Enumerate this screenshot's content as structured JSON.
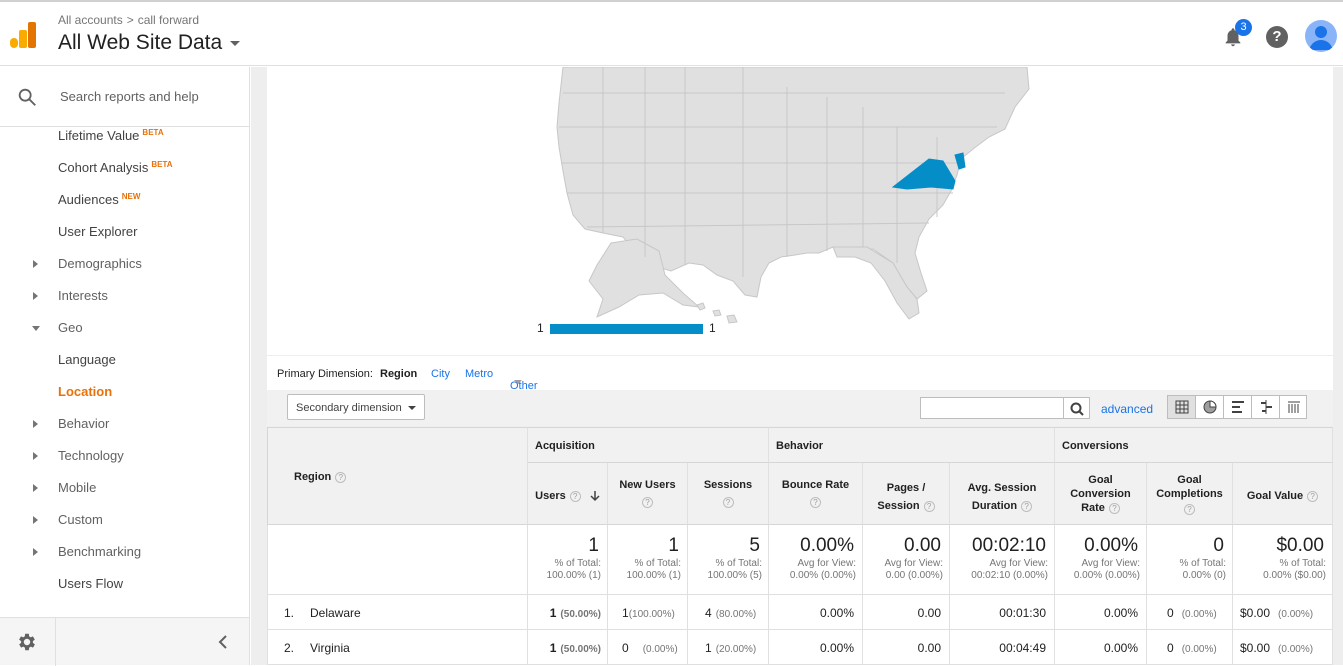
{
  "header": {
    "breadcrumb": [
      "All accounts",
      "call forward"
    ],
    "breadcrumb_sep": ">",
    "property": "All Web Site Data",
    "notifications": "3",
    "help_glyph": "?"
  },
  "sidebar": {
    "search_label": "Search reports and help",
    "items": [
      {
        "label": "Lifetime Value",
        "badge": "BETA",
        "type": "sub"
      },
      {
        "label": "Cohort Analysis",
        "badge": "BETA",
        "type": "sub"
      },
      {
        "label": "Audiences",
        "badge": "NEW",
        "type": "sub"
      },
      {
        "label": "User Explorer",
        "type": "sub"
      },
      {
        "label": "Demographics",
        "type": "collapsed"
      },
      {
        "label": "Interests",
        "type": "collapsed"
      },
      {
        "label": "Geo",
        "type": "expanded"
      },
      {
        "label": "Language",
        "type": "sub"
      },
      {
        "label": "Location",
        "type": "active"
      },
      {
        "label": "Behavior",
        "type": "collapsed"
      },
      {
        "label": "Technology",
        "type": "collapsed"
      },
      {
        "label": "Mobile",
        "type": "collapsed"
      },
      {
        "label": "Custom",
        "type": "collapsed"
      },
      {
        "label": "Benchmarking",
        "type": "collapsed"
      },
      {
        "label": "Users Flow",
        "type": "sub"
      }
    ]
  },
  "map": {
    "legend_min": "1",
    "legend_max": "1",
    "highlight_color": "#058dc7",
    "highlighted_regions": [
      "Virginia",
      "Delaware"
    ]
  },
  "primary_dimension": {
    "label": "Primary Dimension:",
    "selected": "Region",
    "options": [
      "City",
      "Metro",
      "Other"
    ]
  },
  "toolbar": {
    "secondary_dimension": "Secondary dimension",
    "search_value": "",
    "advanced": "advanced"
  },
  "table": {
    "dimension_header": "Region",
    "groups": [
      "Acquisition",
      "Behavior",
      "Conversions"
    ],
    "columns": [
      {
        "l1": "Users",
        "l2": ""
      },
      {
        "l1": "New Users",
        "l2": ""
      },
      {
        "l1": "Sessions",
        "l2": ""
      },
      {
        "l1": "Bounce Rate",
        "l2": ""
      },
      {
        "l1": "Pages /",
        "l2": "Session"
      },
      {
        "l1": "Avg. Session",
        "l2": "Duration"
      },
      {
        "l1": "Goal",
        "l2": "Conversion",
        "l3": "Rate"
      },
      {
        "l1": "Goal",
        "l2": "Completions"
      },
      {
        "l1": "Goal Value",
        "l2": ""
      }
    ],
    "totals": [
      {
        "big": "1",
        "s1": "% of Total:",
        "s2": "100.00% (1)"
      },
      {
        "big": "1",
        "s1": "% of Total:",
        "s2": "100.00% (1)"
      },
      {
        "big": "5",
        "s1": "% of Total:",
        "s2": "100.00% (5)"
      },
      {
        "big": "0.00%",
        "s1": "Avg for View:",
        "s2": "0.00% (0.00%)"
      },
      {
        "big": "0.00",
        "s1": "Avg for View:",
        "s2": "0.00 (0.00%)"
      },
      {
        "big": "00:02:10",
        "s1": "Avg for View:",
        "s2": "00:02:10 (0.00%)"
      },
      {
        "big": "0.00%",
        "s1": "Avg for View:",
        "s2": "0.00% (0.00%)"
      },
      {
        "big": "0",
        "s1": "% of Total:",
        "s2": "0.00% (0)"
      },
      {
        "big": "$0.00",
        "s1": "% of Total:",
        "s2": "0.00% ($0.00)"
      }
    ],
    "rows": [
      {
        "num": "1.",
        "region": "Delaware",
        "users": "1",
        "users_pct": "(50.00%)",
        "new_users": "1",
        "new_users_pct": "(100.00%)",
        "sessions": "4",
        "sessions_pct": "(80.00%)",
        "bounce": "0.00%",
        "pages": "0.00",
        "duration": "00:01:30",
        "conv_rate": "0.00%",
        "completions": "0",
        "completions_pct": "(0.00%)",
        "value": "$0.00",
        "value_pct": "(0.00%)"
      },
      {
        "num": "2.",
        "region": "Virginia",
        "users": "1",
        "users_pct": "(50.00%)",
        "new_users": "0",
        "new_users_pct": "(0.00%)",
        "sessions": "1",
        "sessions_pct": "(20.00%)",
        "bounce": "0.00%",
        "pages": "0.00",
        "duration": "00:04:49",
        "conv_rate": "0.00%",
        "completions": "0",
        "completions_pct": "(0.00%)",
        "value": "$0.00",
        "value_pct": "(0.00%)"
      }
    ]
  }
}
